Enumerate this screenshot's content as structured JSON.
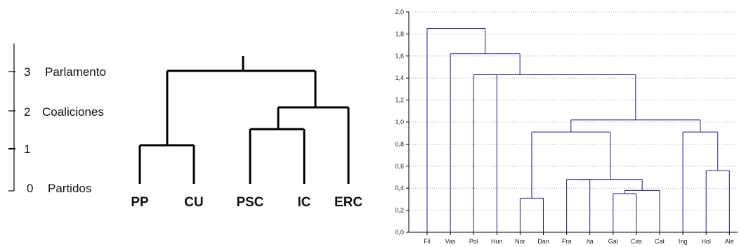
{
  "left_dendrogram": {
    "levels": [
      {
        "value": "3",
        "name": "Parlamento"
      },
      {
        "value": "2",
        "name": "Coaliciones"
      },
      {
        "value": "1",
        "name": ""
      },
      {
        "value": "0",
        "name": "Partidos"
      }
    ],
    "leaves": [
      "PP",
      "CU",
      "PSC",
      "IC",
      "ERC"
    ]
  },
  "colors": {
    "left_lines": "#000000",
    "right_lines": "#1f1f7a",
    "grid": "#9a9a9a",
    "background": "#ffffff"
  },
  "chart_data": {
    "type": "dendrogram",
    "ylim": [
      0,
      2.0
    ],
    "y_ticks": [
      "0,0",
      "0,2",
      "0,4",
      "0,6",
      "0,8",
      "1,0",
      "1,2",
      "1,4",
      "1,6",
      "1,8",
      "2,0"
    ],
    "grid": true,
    "categories": [
      "Fil",
      "Vas",
      "Pol",
      "Hun",
      "Nor",
      "Dan",
      "Fra",
      "Ita",
      "Gal",
      "Cas",
      "Cat",
      "Ing",
      "Hol",
      "Ale"
    ],
    "merges": [
      {
        "left": "Nor",
        "right": "Dan",
        "height": 0.31
      },
      {
        "left": "Gal",
        "right": "Cas",
        "height": 0.35
      },
      {
        "left": "Gal-Cas",
        "right": "Cat",
        "height": 0.38
      },
      {
        "left": "Fra",
        "right": "Ita",
        "height": 0.48
      },
      {
        "left": "Fra-Ita",
        "right": "Gal-Cas-Cat",
        "height": 0.48
      },
      {
        "left": "Hol",
        "right": "Ale",
        "height": 0.56
      },
      {
        "left": "Nor-Dan",
        "right": "Fra-Ita-Gal-Cas-Cat",
        "height": 0.91
      },
      {
        "left": "Ing",
        "right": "Hol-Ale",
        "height": 0.91
      },
      {
        "left": "Nor...Cat",
        "right": "Ing-Hol-Ale",
        "height": 1.02
      },
      {
        "left": "Hun",
        "right": "Nor...Ale",
        "height": 1.43
      },
      {
        "left": "Pol",
        "right": "Hun...Ale",
        "height": 1.43
      },
      {
        "left": "Vas",
        "right": "Pol...Ale",
        "height": 1.62
      },
      {
        "left": "Fil",
        "right": "Vas...Ale",
        "height": 1.85
      }
    ]
  }
}
